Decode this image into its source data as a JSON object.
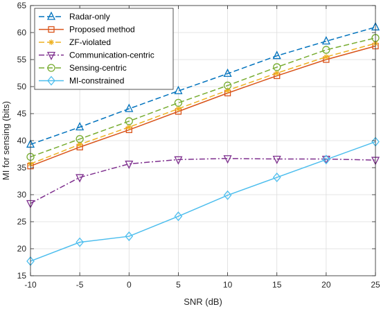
{
  "chart_data": {
    "type": "line",
    "xlabel": "SNR (dB)",
    "ylabel": "MI for sensing (bits)",
    "x": [
      -10,
      -5,
      0,
      5,
      10,
      15,
      20,
      25
    ],
    "xlim": [
      -10,
      25
    ],
    "ylim": [
      15,
      65
    ],
    "xticks": [
      "-10",
      "-5",
      "0",
      "5",
      "10",
      "15",
      "20",
      "25"
    ],
    "yticks": [
      "15",
      "20",
      "25",
      "30",
      "35",
      "40",
      "45",
      "50",
      "55",
      "60",
      "65"
    ],
    "grid": true,
    "legend_position": "top-left",
    "series": [
      {
        "name": "Radar-only",
        "color": "#0072BD",
        "dash": "dashed",
        "marker": "triangle-up",
        "values": [
          39.3,
          42.5,
          45.9,
          49.2,
          52.4,
          55.7,
          58.4,
          61.0
        ]
      },
      {
        "name": "Proposed method",
        "color": "#D95319",
        "dash": "solid",
        "marker": "square",
        "values": [
          35.3,
          38.8,
          42.0,
          45.4,
          48.8,
          52.0,
          55.0,
          57.5
        ]
      },
      {
        "name": "ZF-violated",
        "color": "#EDB120",
        "dash": "dashed",
        "marker": "asterisk",
        "values": [
          35.7,
          39.3,
          42.5,
          45.9,
          49.3,
          52.5,
          55.5,
          58.0
        ]
      },
      {
        "name": "Communication-centric",
        "color": "#7E2F8E",
        "dash": "dashdot",
        "marker": "triangle-down",
        "values": [
          28.4,
          33.2,
          35.7,
          36.5,
          36.7,
          36.6,
          36.6,
          36.4
        ]
      },
      {
        "name": "Sensing-centric",
        "color": "#77AC30",
        "dash": "dashed",
        "marker": "circle",
        "values": [
          37.0,
          40.3,
          43.6,
          47.0,
          50.2,
          53.6,
          56.8,
          59.0
        ]
      },
      {
        "name": "MI-constrained",
        "color": "#4DBEEE",
        "dash": "solid",
        "marker": "diamond",
        "values": [
          17.7,
          21.2,
          22.3,
          26.0,
          29.9,
          33.2,
          36.5,
          39.8
        ]
      }
    ]
  }
}
